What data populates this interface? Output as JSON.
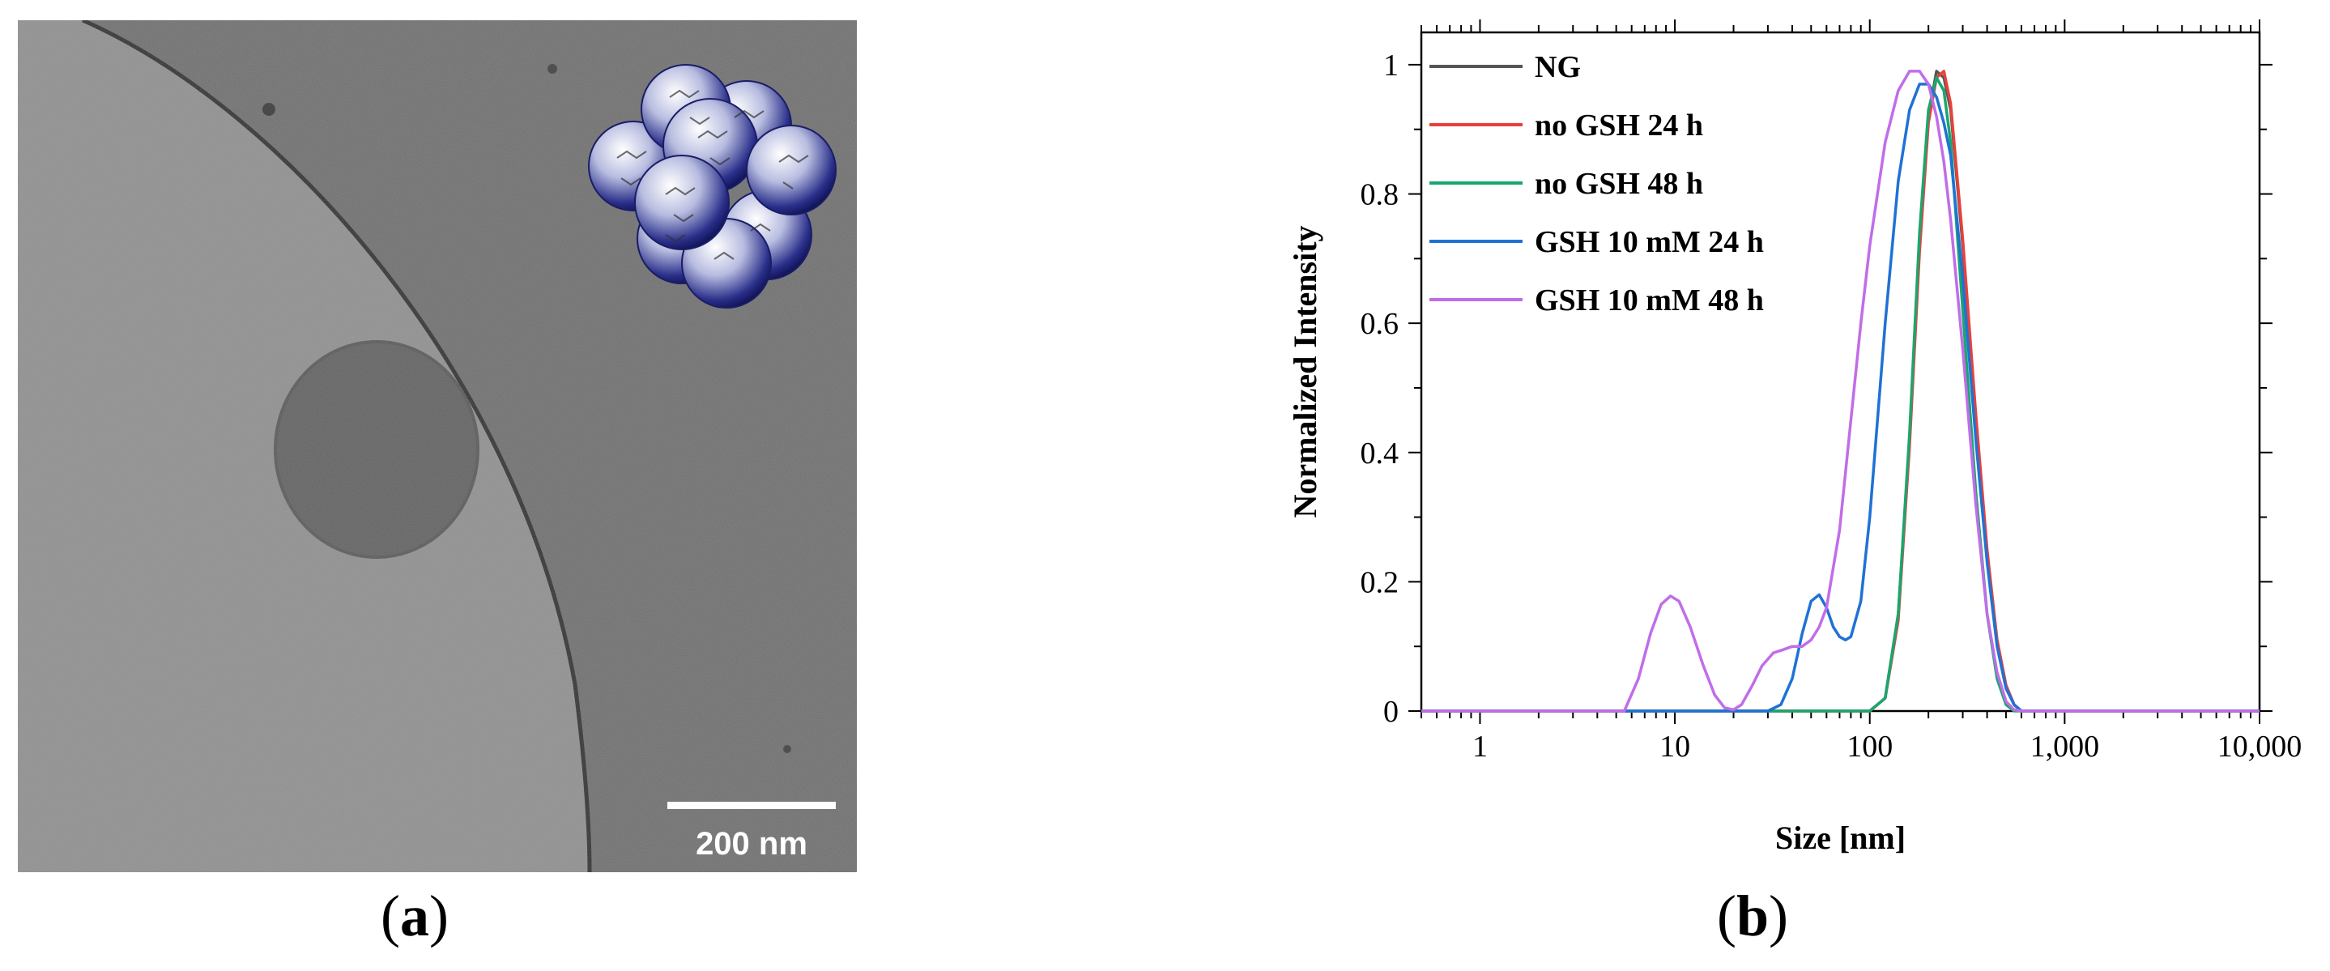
{
  "panel_a": {
    "label_open": "(",
    "label_letter": "a",
    "label_close": ")",
    "scale_bar_text": "200 nm"
  },
  "panel_b": {
    "label_open": "(",
    "label_letter": "b",
    "label_close": ")"
  },
  "chart_data": {
    "type": "line",
    "title": "",
    "xlabel": "Size [nm]",
    "ylabel": "Normalized Intensity",
    "x_scale": "log",
    "xlim": [
      0.5,
      10000
    ],
    "ylim": [
      0,
      1.05
    ],
    "x_ticks": [
      1,
      10,
      100,
      1000,
      10000
    ],
    "x_tick_labels": [
      "1",
      "10",
      "100",
      "1,000",
      "10,000"
    ],
    "y_ticks": [
      0,
      0.2,
      0.4,
      0.6,
      0.8,
      1
    ],
    "y_tick_labels": [
      "0",
      "0.2",
      "0.4",
      "0.6",
      "0.8",
      "1"
    ],
    "grid": false,
    "legend_position": "top-left",
    "series": [
      {
        "name": "NG",
        "color": "#555555",
        "x": [
          0.5,
          100,
          120,
          140,
          160,
          180,
          200,
          220,
          240,
          260,
          300,
          350,
          400,
          450,
          500,
          550,
          600,
          650,
          10000
        ],
        "y": [
          0,
          0,
          0.02,
          0.15,
          0.42,
          0.72,
          0.92,
          0.99,
          0.98,
          0.93,
          0.72,
          0.45,
          0.24,
          0.11,
          0.04,
          0.01,
          0,
          0,
          0
        ]
      },
      {
        "name": "no GSH 24 h",
        "color": "#e8413c",
        "x": [
          0.5,
          100,
          120,
          140,
          160,
          180,
          200,
          220,
          240,
          260,
          300,
          350,
          400,
          450,
          500,
          550,
          600,
          650,
          10000
        ],
        "y": [
          0,
          0,
          0.02,
          0.14,
          0.41,
          0.71,
          0.91,
          0.98,
          0.99,
          0.94,
          0.73,
          0.46,
          0.25,
          0.11,
          0.04,
          0.01,
          0,
          0,
          0
        ]
      },
      {
        "name": "no GSH 48 h",
        "color": "#1aa66e",
        "x": [
          0.5,
          100,
          120,
          140,
          160,
          180,
          200,
          220,
          240,
          260,
          300,
          350,
          400,
          450,
          500,
          550,
          600,
          10000
        ],
        "y": [
          0,
          0,
          0.02,
          0.15,
          0.43,
          0.74,
          0.93,
          0.98,
          0.96,
          0.88,
          0.62,
          0.34,
          0.15,
          0.05,
          0.01,
          0,
          0,
          0
        ]
      },
      {
        "name": "GSH 10 mM 24 h",
        "color": "#1f72d4",
        "x": [
          0.5,
          30,
          35,
          40,
          45,
          50,
          55,
          60,
          65,
          70,
          75,
          80,
          90,
          100,
          120,
          140,
          160,
          180,
          200,
          220,
          240,
          260,
          300,
          350,
          400,
          450,
          500,
          550,
          600,
          650,
          10000
        ],
        "y": [
          0,
          0,
          0.01,
          0.05,
          0.12,
          0.17,
          0.18,
          0.16,
          0.13,
          0.115,
          0.11,
          0.115,
          0.17,
          0.3,
          0.6,
          0.82,
          0.93,
          0.97,
          0.97,
          0.95,
          0.91,
          0.86,
          0.67,
          0.42,
          0.23,
          0.1,
          0.035,
          0.01,
          0,
          0,
          0
        ]
      },
      {
        "name": "GSH 10 mM 48 h",
        "color": "#c16de8",
        "x": [
          0.5,
          5.5,
          6.5,
          7.5,
          8.5,
          9.5,
          10.5,
          12,
          14,
          16,
          18,
          20,
          22,
          25,
          28,
          32,
          36,
          40,
          45,
          50,
          55,
          60,
          70,
          80,
          90,
          100,
          120,
          140,
          160,
          180,
          200,
          220,
          240,
          260,
          300,
          350,
          400,
          450,
          500,
          550,
          600,
          10000
        ],
        "y": [
          0,
          0,
          0.05,
          0.12,
          0.165,
          0.178,
          0.17,
          0.13,
          0.07,
          0.025,
          0.005,
          0.002,
          0.01,
          0.04,
          0.07,
          0.09,
          0.095,
          0.1,
          0.1,
          0.11,
          0.13,
          0.16,
          0.28,
          0.45,
          0.6,
          0.72,
          0.88,
          0.96,
          0.99,
          0.99,
          0.97,
          0.92,
          0.85,
          0.76,
          0.56,
          0.32,
          0.15,
          0.06,
          0.015,
          0.002,
          0,
          0
        ]
      }
    ]
  }
}
